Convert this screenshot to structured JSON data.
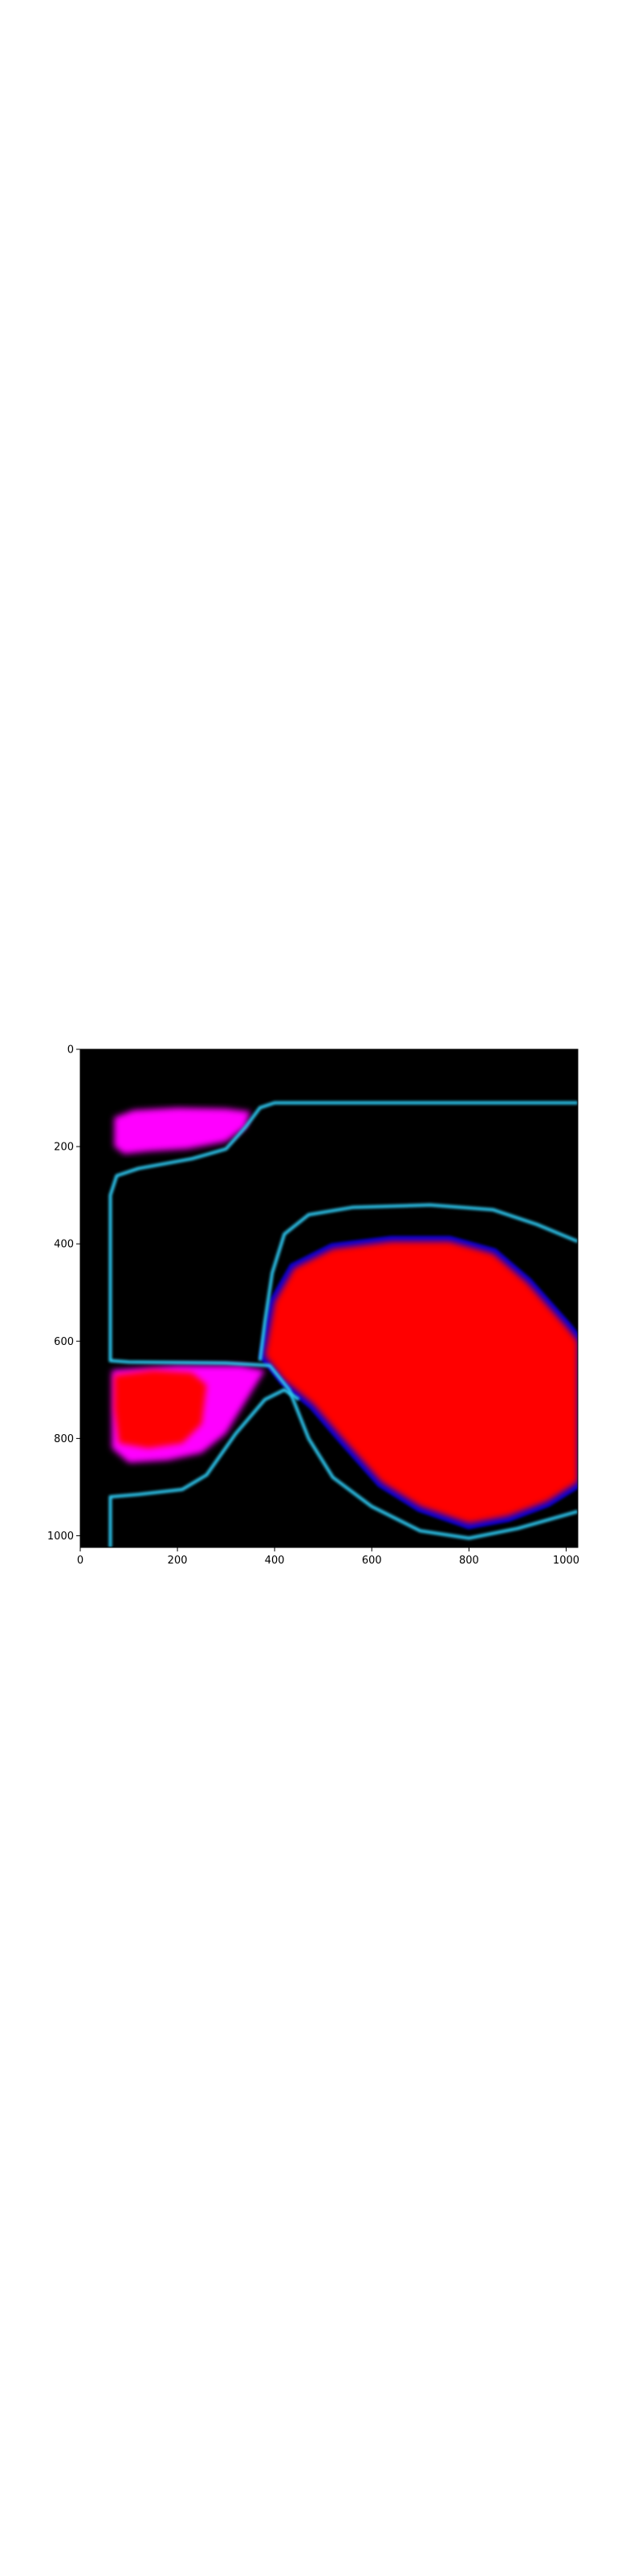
{
  "chart_data": {
    "type": "heatmap",
    "title": "",
    "xlabel": "",
    "ylabel": "",
    "xlim": [
      0,
      1024
    ],
    "ylim": [
      1024,
      0
    ],
    "x_ticks": [
      {
        "value": 0,
        "label": "0"
      },
      {
        "value": 200,
        "label": "200"
      },
      {
        "value": 400,
        "label": "400"
      },
      {
        "value": 600,
        "label": "600"
      },
      {
        "value": 800,
        "label": "800"
      },
      {
        "value": 1000,
        "label": "1000"
      }
    ],
    "y_ticks": [
      {
        "value": 0,
        "label": "0"
      },
      {
        "value": 200,
        "label": "200"
      },
      {
        "value": 400,
        "label": "400"
      },
      {
        "value": 600,
        "label": "600"
      },
      {
        "value": 800,
        "label": "800"
      },
      {
        "value": 1000,
        "label": "1000"
      }
    ],
    "background_color": "#000000",
    "colors": {
      "red": "#ff0000",
      "magenta": "#ff00ff",
      "blue": "#0000ff",
      "cyan_edge": "#2ec8f0"
    },
    "regions": [
      {
        "name": "top-left magenta blob",
        "color": "magenta",
        "points": [
          [
            70,
            140
          ],
          [
            110,
            125
          ],
          [
            200,
            120
          ],
          [
            300,
            122
          ],
          [
            350,
            128
          ],
          [
            340,
            160
          ],
          [
            300,
            190
          ],
          [
            220,
            205
          ],
          [
            140,
            210
          ],
          [
            90,
            215
          ],
          [
            70,
            200
          ]
        ]
      },
      {
        "name": "main red region",
        "color": "red",
        "points": [
          [
            380,
            630
          ],
          [
            400,
            520
          ],
          [
            440,
            450
          ],
          [
            520,
            410
          ],
          [
            640,
            395
          ],
          [
            760,
            395
          ],
          [
            850,
            420
          ],
          [
            920,
            480
          ],
          [
            1000,
            570
          ],
          [
            1024,
            600
          ],
          [
            1024,
            890
          ],
          [
            960,
            930
          ],
          [
            880,
            960
          ],
          [
            800,
            975
          ],
          [
            700,
            940
          ],
          [
            620,
            890
          ],
          [
            540,
            800
          ],
          [
            480,
            730
          ],
          [
            420,
            680
          ]
        ]
      },
      {
        "name": "lower-left red blob",
        "color": "red",
        "points": [
          [
            70,
            670
          ],
          [
            150,
            660
          ],
          [
            230,
            665
          ],
          [
            260,
            690
          ],
          [
            250,
            770
          ],
          [
            210,
            810
          ],
          [
            140,
            820
          ],
          [
            80,
            810
          ],
          [
            70,
            740
          ]
        ]
      },
      {
        "name": "lower-left magenta halo",
        "color": "magenta",
        "points": [
          [
            65,
            660
          ],
          [
            200,
            650
          ],
          [
            330,
            650
          ],
          [
            380,
            660
          ],
          [
            300,
            790
          ],
          [
            250,
            830
          ],
          [
            180,
            845
          ],
          [
            100,
            850
          ],
          [
            65,
            820
          ]
        ]
      }
    ],
    "boundaries": [
      {
        "name": "upper channel wall",
        "color": "cyan_edge",
        "points": [
          [
            1024,
            110
          ],
          [
            600,
            110
          ],
          [
            400,
            110
          ],
          [
            370,
            120
          ],
          [
            340,
            160
          ],
          [
            300,
            205
          ],
          [
            230,
            225
          ],
          [
            120,
            245
          ],
          [
            75,
            260
          ],
          [
            62,
            300
          ],
          [
            62,
            640
          ],
          [
            100,
            643
          ],
          [
            300,
            645
          ],
          [
            390,
            650
          ],
          [
            430,
            700
          ],
          [
            470,
            800
          ],
          [
            520,
            880
          ],
          [
            600,
            940
          ],
          [
            700,
            990
          ],
          [
            800,
            1005
          ],
          [
            900,
            985
          ],
          [
            1024,
            950
          ]
        ]
      },
      {
        "name": "lower channel wall",
        "color": "cyan_edge",
        "points": [
          [
            1024,
            395
          ],
          [
            940,
            360
          ],
          [
            850,
            330
          ],
          [
            720,
            320
          ],
          [
            560,
            325
          ],
          [
            470,
            340
          ],
          [
            420,
            380
          ],
          [
            395,
            460
          ],
          [
            380,
            560
          ],
          [
            370,
            640
          ]
        ]
      },
      {
        "name": "bottom-left wall",
        "color": "cyan_edge",
        "points": [
          [
            62,
            1024
          ],
          [
            62,
            920
          ],
          [
            120,
            915
          ],
          [
            210,
            905
          ],
          [
            260,
            875
          ],
          [
            320,
            790
          ],
          [
            380,
            720
          ],
          [
            420,
            700
          ],
          [
            450,
            720
          ]
        ]
      }
    ]
  }
}
